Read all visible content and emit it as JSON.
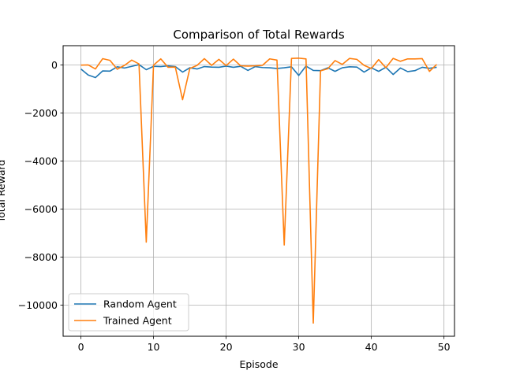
{
  "chart_data": {
    "type": "line",
    "title": "Comparison of Total Rewards",
    "xlabel": "Episode",
    "ylabel": "Total Reward",
    "xlim": [
      -2.45,
      51.45
    ],
    "ylim": [
      -11300,
      800
    ],
    "xticks": [
      0,
      10,
      20,
      30,
      40,
      50
    ],
    "yticks": [
      -10000,
      -8000,
      -6000,
      -4000,
      -2000,
      0
    ],
    "xtick_labels": [
      "0",
      "10",
      "20",
      "30",
      "40",
      "50"
    ],
    "ytick_labels": [
      "−10000",
      "−8000",
      "−6000",
      "−4000",
      "−2000",
      "0"
    ],
    "grid": true,
    "legend_position": "lower-left",
    "x": [
      0,
      1,
      2,
      3,
      4,
      5,
      6,
      7,
      8,
      9,
      10,
      11,
      12,
      13,
      14,
      15,
      16,
      17,
      18,
      19,
      20,
      21,
      22,
      23,
      24,
      25,
      26,
      27,
      28,
      29,
      30,
      31,
      32,
      33,
      34,
      35,
      36,
      37,
      38,
      39,
      40,
      41,
      42,
      43,
      44,
      45,
      46,
      47,
      48,
      49
    ],
    "series": [
      {
        "name": "Random Agent",
        "color": "#1f77b4",
        "values": [
          -170,
          -420,
          -530,
          -250,
          -260,
          -80,
          -130,
          -60,
          10,
          -200,
          -60,
          -70,
          -40,
          -70,
          -300,
          -120,
          -170,
          -70,
          -90,
          -100,
          -50,
          -100,
          -60,
          -230,
          -70,
          -110,
          -120,
          -150,
          -120,
          -80,
          -440,
          -50,
          -230,
          -240,
          -120,
          -270,
          -120,
          -80,
          -90,
          -300,
          -120,
          -270,
          -100,
          -400,
          -130,
          -280,
          -240,
          -100,
          -140,
          -100
        ]
      },
      {
        "name": "Trained Agent",
        "color": "#ff7f0e",
        "values": [
          -10,
          0,
          -170,
          260,
          190,
          -180,
          -20,
          200,
          40,
          -7380,
          -10,
          250,
          -100,
          -90,
          -1450,
          -150,
          -20,
          260,
          -20,
          230,
          -30,
          240,
          -40,
          -50,
          -40,
          -20,
          250,
          200,
          -7500,
          270,
          280,
          250,
          -10750,
          -250,
          -160,
          180,
          20,
          270,
          230,
          -20,
          -150,
          220,
          -120,
          270,
          150,
          250,
          250,
          260,
          -270,
          20
        ]
      }
    ]
  }
}
